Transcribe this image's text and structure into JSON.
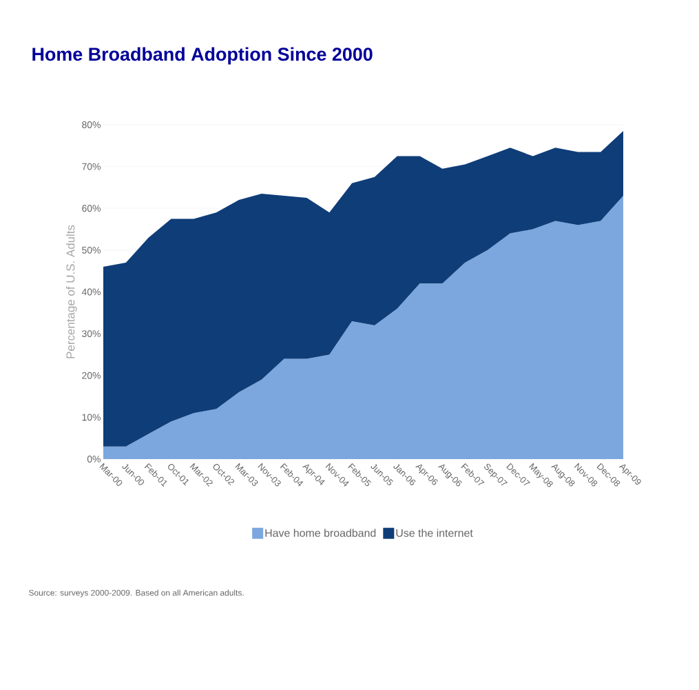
{
  "chart_data": {
    "type": "area",
    "title": "Home Broadband Adoption Since 2000",
    "ylabel": "Percentage of U.S. Adults",
    "categories": [
      "Mar-00",
      "Jun-00",
      "Feb-01",
      "Oct-01",
      "Mar-02",
      "Oct-02",
      "Mar-03",
      "Nov-03",
      "Feb-04",
      "Apr-04",
      "Nov-04",
      "Feb-05",
      "Jun-05",
      "Jan-06",
      "Apr-06",
      "Aug-06",
      "Feb-07",
      "Sep-07",
      "Dec-07",
      "May-08",
      "Aug-08",
      "Nov-08",
      "Dec-08",
      "Apr-09"
    ],
    "series": [
      {
        "name": "Have home broadband",
        "color": "#7ba7de",
        "values": [
          3,
          3,
          6,
          9,
          11,
          12,
          16,
          19,
          24,
          24,
          25,
          33,
          32,
          36,
          42,
          42,
          47,
          50,
          54,
          55,
          57,
          56,
          57,
          63
        ]
      },
      {
        "name": "Use the internet",
        "color": "#0f3d78",
        "values": [
          46,
          47,
          53,
          57.5,
          57.5,
          59,
          62,
          63.5,
          63,
          62.5,
          59,
          66,
          67.5,
          72.5,
          72.5,
          69.5,
          70.5,
          72.5,
          74.5,
          72.5,
          74.5,
          73.5,
          73.5,
          78.5
        ]
      }
    ],
    "ylim": [
      0,
      80
    ],
    "yticks": [
      {
        "value": 0,
        "label": "0%"
      },
      {
        "value": 10,
        "label": "10%"
      },
      {
        "value": 20,
        "label": "20%"
      },
      {
        "value": 30,
        "label": "30%"
      },
      {
        "value": 40,
        "label": "40%"
      },
      {
        "value": 50,
        "label": "50%"
      },
      {
        "value": 60,
        "label": "60%"
      },
      {
        "value": 70,
        "label": "70%"
      },
      {
        "value": 80,
        "label": "80%"
      }
    ],
    "grid": "y",
    "legend": "bottom",
    "annotations": [
      "Source: surveys 2000-2009.  Based on all American adults."
    ]
  }
}
